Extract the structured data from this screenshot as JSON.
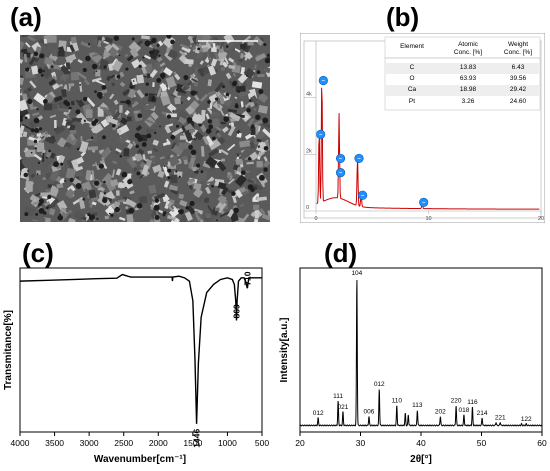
{
  "panel_labels": {
    "a": "(a)",
    "b": "(b)",
    "c": "(c)",
    "d": "(d)"
  },
  "eds_table": {
    "headers": [
      [
        "Element"
      ],
      [
        "Atomic",
        "Conc. [%]"
      ],
      [
        "Weight",
        "Conc. [%]"
      ]
    ],
    "rows": [
      [
        "C",
        "13.83",
        "6.43"
      ],
      [
        "O",
        "63.93",
        "39.56"
      ],
      [
        "Ca",
        "18.98",
        "29.42"
      ],
      [
        "Pt",
        "3.26",
        "24.60"
      ]
    ]
  },
  "chart_data": [
    {
      "panel": "b",
      "type": "line",
      "description_type": "EDS spectrum",
      "x_ticks": [
        "0",
        "10",
        "20"
      ],
      "y_ticks": [
        "0",
        "2k",
        "4k"
      ],
      "xlim": [
        0,
        20
      ],
      "ylim": [
        0,
        6000
      ],
      "line_color": "#cc0000",
      "peak_marker_color": "#1e90ff",
      "peaks": [
        {
          "x": 0.28,
          "y": 2600
        },
        {
          "x": 0.52,
          "y": 4500
        },
        {
          "x": 2.05,
          "y": 1250
        },
        {
          "x": 2.05,
          "y": 1750
        },
        {
          "x": 3.69,
          "y": 1750
        },
        {
          "x": 4.01,
          "y": 450
        },
        {
          "x": 9.44,
          "y": 200
        }
      ]
    },
    {
      "panel": "c",
      "type": "line",
      "description_type": "FTIR spectrum",
      "xlabel": "Wavenumber[cm⁻¹]",
      "ylabel": "Transmitance[%]",
      "x_reversed": true,
      "xlim": [
        4000,
        500
      ],
      "ylim": [
        0,
        100
      ],
      "x_ticks": [
        "4000",
        "3500",
        "3000",
        "2500",
        "2000",
        "1500",
        "1000",
        "500"
      ],
      "annotations": [
        {
          "text": "1446",
          "x": 1446,
          "y": 5
        },
        {
          "text": "869",
          "x": 869,
          "y": 68
        },
        {
          "text": "710",
          "x": 710,
          "y": 88
        }
      ],
      "x": [
        4000,
        3600,
        3200,
        2900,
        2600,
        2520,
        2400,
        2000,
        1800,
        1795,
        1790,
        1700,
        1620,
        1550,
        1500,
        1470,
        1446,
        1420,
        1380,
        1300,
        1200,
        1100,
        1000,
        930,
        900,
        880,
        869,
        860,
        840,
        800,
        760,
        730,
        715,
        710,
        705,
        690,
        600,
        500
      ],
      "y": [
        92,
        92.5,
        93,
        93.5,
        93.8,
        96,
        94.5,
        94.5,
        94.5,
        92,
        94.5,
        95,
        94,
        92,
        80,
        45,
        5,
        42,
        70,
        85,
        90,
        93,
        94,
        93,
        90,
        80,
        68,
        80,
        92,
        94,
        94,
        91,
        88,
        88,
        90,
        94,
        94,
        94
      ]
    },
    {
      "panel": "d",
      "type": "line",
      "description_type": "XRD pattern",
      "xlabel": "2θ[°]",
      "ylabel": "Intensity[a.u.]",
      "xlim": [
        20,
        60
      ],
      "ylim": [
        0,
        100
      ],
      "x_ticks": [
        "20",
        "30",
        "40",
        "50",
        "60"
      ],
      "baseline": 3,
      "peaks": [
        {
          "x": 23.0,
          "y": 8,
          "label": "012"
        },
        {
          "x": 26.3,
          "y": 19,
          "label": "111"
        },
        {
          "x": 27.1,
          "y": 12,
          "label": "021"
        },
        {
          "x": 29.4,
          "y": 100,
          "label": "104"
        },
        {
          "x": 31.4,
          "y": 9,
          "label": "006"
        },
        {
          "x": 33.1,
          "y": 27,
          "label": "012"
        },
        {
          "x": 36.0,
          "y": 16,
          "label": "110"
        },
        {
          "x": 37.4,
          "y": 11,
          "label": ""
        },
        {
          "x": 37.9,
          "y": 10,
          "label": ""
        },
        {
          "x": 39.4,
          "y": 13,
          "label": "113"
        },
        {
          "x": 43.2,
          "y": 9,
          "label": "202"
        },
        {
          "x": 45.8,
          "y": 16,
          "label": "220"
        },
        {
          "x": 47.1,
          "y": 10,
          "label": "018"
        },
        {
          "x": 48.5,
          "y": 15,
          "label": "116"
        },
        {
          "x": 50.1,
          "y": 8,
          "label": "214"
        },
        {
          "x": 52.4,
          "y": 5,
          "label": ""
        },
        {
          "x": 53.1,
          "y": 5,
          "label": "221"
        },
        {
          "x": 56.6,
          "y": 4,
          "label": ""
        },
        {
          "x": 57.4,
          "y": 4,
          "label": "122"
        }
      ]
    }
  ]
}
